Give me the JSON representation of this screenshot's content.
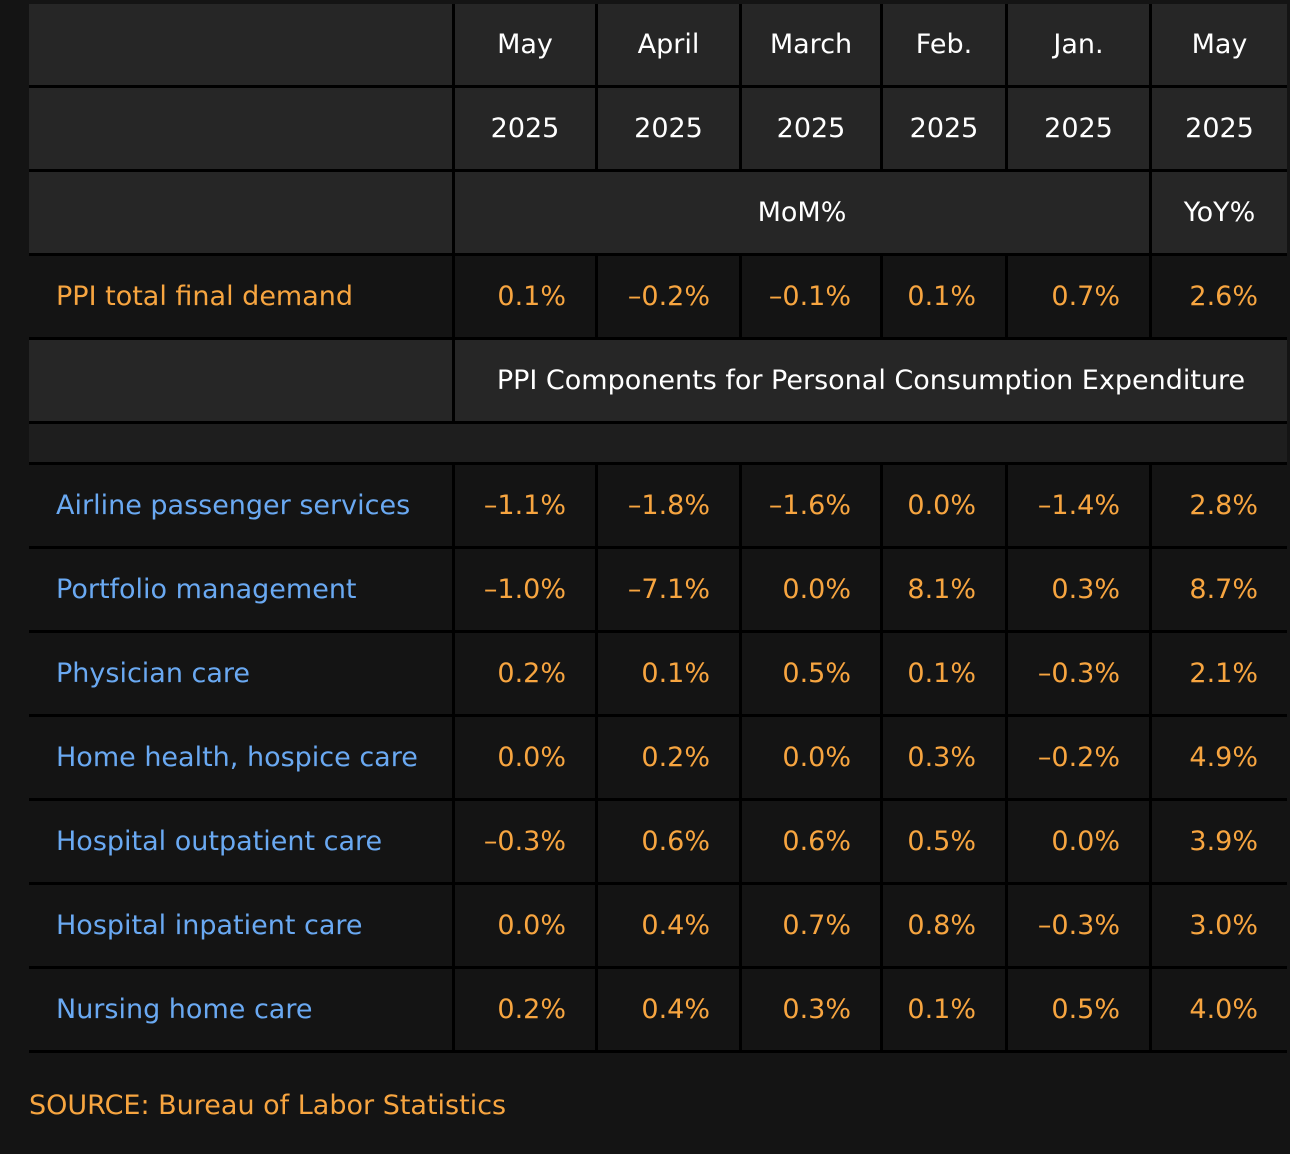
{
  "chart_data": {
    "type": "table",
    "header_months": [
      "May",
      "April",
      "March",
      "Feb.",
      "Jan.",
      "May"
    ],
    "header_years": [
      "2025",
      "2025",
      "2025",
      "2025",
      "2025",
      "2025"
    ],
    "mom_label": "MoM%",
    "yoy_label": "YoY%",
    "total_row": {
      "label": "PPI total final demand",
      "values": [
        "0.1%",
        "–0.2%",
        "–0.1%",
        "0.1%",
        "0.7%",
        "2.6%"
      ]
    },
    "components_label": "PPI Components for Personal Consumption Expenditure",
    "rows": [
      {
        "label": "Airline passenger services",
        "values": [
          "–1.1%",
          "–1.8%",
          "–1.6%",
          "0.0%",
          "–1.4%",
          "2.8%"
        ]
      },
      {
        "label": "Portfolio management",
        "values": [
          "–1.0%",
          "–7.1%",
          "0.0%",
          "8.1%",
          "0.3%",
          "8.7%"
        ]
      },
      {
        "label": "Physician care",
        "values": [
          "0.2%",
          "0.1%",
          "0.5%",
          "0.1%",
          "–0.3%",
          "2.1%"
        ]
      },
      {
        "label": "Home health, hospice care",
        "values": [
          "0.0%",
          "0.2%",
          "0.0%",
          "0.3%",
          "–0.2%",
          "4.9%"
        ]
      },
      {
        "label": "Hospital outpatient care",
        "values": [
          "–0.3%",
          "0.6%",
          "0.6%",
          "0.5%",
          "0.0%",
          "3.9%"
        ]
      },
      {
        "label": "Hospital inpatient care",
        "values": [
          "0.0%",
          "0.4%",
          "0.7%",
          "0.8%",
          "–0.3%",
          "3.0%"
        ]
      },
      {
        "label": "Nursing home care",
        "values": [
          "0.2%",
          "0.4%",
          "0.3%",
          "0.1%",
          "0.5%",
          "4.0%"
        ]
      }
    ],
    "source": "SOURCE: Bureau of Labor Statistics"
  },
  "colors": {
    "background": "#141414",
    "header_background": "#262626",
    "value_orange": "#f7a540",
    "label_blue": "#6aa9f2",
    "grid_lines": "#000000"
  }
}
